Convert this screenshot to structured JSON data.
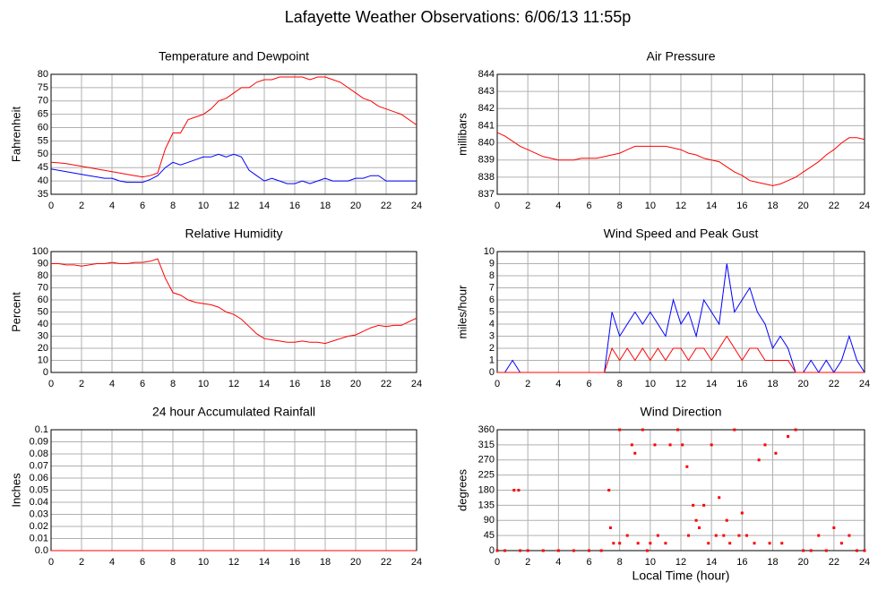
{
  "title": "Lafayette Weather Observations: 6/06/13 11:55p",
  "chart_data": [
    {
      "type": "line",
      "title": "Temperature and Dewpoint",
      "ylabel": "Fahrenheit",
      "x": [
        0,
        0.5,
        1,
        1.5,
        2,
        2.5,
        3,
        3.5,
        4,
        4.5,
        5,
        5.5,
        6,
        6.5,
        7,
        7.5,
        8,
        8.5,
        9,
        9.5,
        10,
        10.5,
        11,
        11.5,
        12,
        12.5,
        13,
        13.5,
        14,
        14.5,
        15,
        15.5,
        16,
        16.5,
        17,
        17.5,
        18,
        18.5,
        19,
        19.5,
        20,
        20.5,
        21,
        21.5,
        22,
        22.5,
        23,
        23.5,
        24
      ],
      "series": [
        {
          "color": "#ff0000",
          "values": [
            47,
            46.8,
            46.5,
            46,
            45.5,
            45,
            44.5,
            44,
            43.5,
            43,
            42.5,
            42,
            41.5,
            42,
            43,
            52,
            58,
            58,
            63,
            64,
            65,
            67,
            70,
            71,
            73,
            75,
            75,
            77,
            78,
            78,
            79,
            79,
            79,
            79,
            78,
            79,
            79,
            78,
            77,
            75,
            73,
            71,
            70,
            68,
            67,
            66,
            65,
            63,
            61
          ]
        },
        {
          "color": "#0000ff",
          "values": [
            44.5,
            44,
            43.5,
            43,
            42.5,
            42,
            41.5,
            41,
            41,
            40,
            39.5,
            39.5,
            39.5,
            40.5,
            42,
            45,
            47,
            46,
            47,
            48,
            49,
            49,
            50,
            49,
            50,
            49,
            44,
            42,
            40,
            41,
            40,
            39,
            39,
            40,
            39,
            40,
            41,
            40,
            40,
            40,
            41,
            41,
            42,
            42,
            40,
            40,
            40,
            40,
            40
          ]
        }
      ],
      "xlim": [
        0,
        24
      ],
      "xticks": [
        0,
        2,
        4,
        6,
        8,
        10,
        12,
        14,
        16,
        18,
        20,
        22,
        24
      ],
      "ylim": [
        35,
        80
      ],
      "yticks": [
        35,
        40,
        45,
        50,
        55,
        60,
        65,
        70,
        75,
        80
      ],
      "grid": true
    },
    {
      "type": "line",
      "title": "Air Pressure",
      "ylabel": "millibars",
      "x": [
        0,
        0.5,
        1,
        1.5,
        2,
        2.5,
        3,
        3.5,
        4,
        4.5,
        5,
        5.5,
        6,
        6.5,
        7,
        7.5,
        8,
        8.5,
        9,
        9.5,
        10,
        10.5,
        11,
        11.5,
        12,
        12.5,
        13,
        13.5,
        14,
        14.5,
        15,
        15.5,
        16,
        16.5,
        17,
        17.5,
        18,
        18.5,
        19,
        19.5,
        20,
        20.5,
        21,
        21.5,
        22,
        22.5,
        23,
        23.5,
        24
      ],
      "series": [
        {
          "color": "#ff0000",
          "values": [
            840.6,
            840.4,
            840.1,
            839.8,
            839.6,
            839.4,
            839.2,
            839.1,
            839,
            839,
            839,
            839.1,
            839.1,
            839.1,
            839.2,
            839.3,
            839.4,
            839.6,
            839.8,
            839.8,
            839.8,
            839.8,
            839.8,
            839.7,
            839.6,
            839.4,
            839.3,
            839.1,
            839,
            838.9,
            838.6,
            838.3,
            838.1,
            837.8,
            837.7,
            837.6,
            837.5,
            837.6,
            837.8,
            838,
            838.3,
            838.6,
            838.9,
            839.3,
            839.6,
            840,
            840.3,
            840.3,
            840.2
          ]
        }
      ],
      "xlim": [
        0,
        24
      ],
      "xticks": [
        0,
        2,
        4,
        6,
        8,
        10,
        12,
        14,
        16,
        18,
        20,
        22,
        24
      ],
      "ylim": [
        837,
        844
      ],
      "yticks": [
        837,
        838,
        839,
        840,
        841,
        842,
        843,
        844
      ],
      "grid": true
    },
    {
      "type": "line",
      "title": "Relative Humidity",
      "ylabel": "Percent",
      "x": [
        0,
        0.5,
        1,
        1.5,
        2,
        2.5,
        3,
        3.5,
        4,
        4.5,
        5,
        5.5,
        6,
        6.5,
        7,
        7.5,
        8,
        8.5,
        9,
        9.5,
        10,
        10.5,
        11,
        11.5,
        12,
        12.5,
        13,
        13.5,
        14,
        14.5,
        15,
        15.5,
        16,
        16.5,
        17,
        17.5,
        18,
        18.5,
        19,
        19.5,
        20,
        20.5,
        21,
        21.5,
        22,
        22.5,
        23,
        23.5,
        24
      ],
      "series": [
        {
          "color": "#ff0000",
          "values": [
            90,
            90,
            89,
            89,
            88,
            89,
            90,
            90,
            91,
            90,
            90,
            91,
            91,
            92,
            94,
            78,
            66,
            64,
            60,
            58,
            57,
            56,
            54,
            50,
            48,
            44,
            38,
            32,
            28,
            27,
            26,
            25,
            25,
            26,
            25,
            25,
            24,
            26,
            28,
            30,
            31,
            34,
            37,
            39,
            38,
            39,
            39,
            42,
            45
          ]
        }
      ],
      "xlim": [
        0,
        24
      ],
      "xticks": [
        0,
        2,
        4,
        6,
        8,
        10,
        12,
        14,
        16,
        18,
        20,
        22,
        24
      ],
      "ylim": [
        0,
        100
      ],
      "yticks": [
        0,
        10,
        20,
        30,
        40,
        50,
        60,
        70,
        80,
        90,
        100
      ],
      "grid": true
    },
    {
      "type": "line",
      "title": "Wind Speed and Peak Gust",
      "ylabel": "miles/hour",
      "x": [
        0,
        0.5,
        1,
        1.5,
        2,
        2.5,
        3,
        3.5,
        4,
        4.5,
        5,
        5.5,
        6,
        6.5,
        7,
        7.5,
        8,
        8.5,
        9,
        9.5,
        10,
        10.5,
        11,
        11.5,
        12,
        12.5,
        13,
        13.5,
        14,
        14.5,
        15,
        15.5,
        16,
        16.5,
        17,
        17.5,
        18,
        18.5,
        19,
        19.5,
        20,
        20.5,
        21,
        21.5,
        22,
        22.5,
        23,
        23.5,
        24
      ],
      "series": [
        {
          "color": "#0000ff",
          "values": [
            0,
            0,
            1,
            0,
            0,
            0,
            0,
            0,
            0,
            0,
            0,
            0,
            0,
            0,
            0,
            5,
            3,
            4,
            5,
            4,
            5,
            4,
            3,
            6,
            4,
            5,
            3,
            6,
            5,
            4,
            9,
            5,
            6,
            7,
            5,
            4,
            2,
            3,
            2,
            0,
            0,
            1,
            0,
            1,
            0,
            1,
            3,
            1,
            0
          ]
        },
        {
          "color": "#ff0000",
          "values": [
            0,
            0,
            0,
            0,
            0,
            0,
            0,
            0,
            0,
            0,
            0,
            0,
            0,
            0,
            0,
            2,
            1,
            2,
            1,
            2,
            1,
            2,
            1,
            2,
            2,
            1,
            2,
            2,
            1,
            2,
            3,
            2,
            1,
            2,
            2,
            1,
            1,
            1,
            1,
            0,
            0,
            0,
            0,
            0,
            0,
            0,
            0,
            0,
            0
          ]
        }
      ],
      "xlim": [
        0,
        24
      ],
      "xticks": [
        0,
        2,
        4,
        6,
        8,
        10,
        12,
        14,
        16,
        18,
        20,
        22,
        24
      ],
      "ylim": [
        0,
        10
      ],
      "yticks": [
        0,
        1,
        2,
        3,
        4,
        5,
        6,
        7,
        8,
        9,
        10
      ],
      "grid": true
    },
    {
      "type": "line",
      "title": "24 hour Accumulated Rainfall",
      "ylabel": "Inches",
      "x": [
        0,
        24
      ],
      "series": [
        {
          "color": "#ff0000",
          "values": [
            0,
            0
          ]
        }
      ],
      "xlim": [
        0,
        24
      ],
      "xticks": [
        0,
        2,
        4,
        6,
        8,
        10,
        12,
        14,
        16,
        18,
        20,
        22,
        24
      ],
      "ylim": [
        0,
        0.1
      ],
      "yticks": [
        {
          "value": 0,
          "label": "0.0"
        },
        0.01,
        0.02,
        0.03,
        0.04,
        0.05,
        0.06,
        0.07,
        0.08,
        0.09,
        0.1
      ],
      "grid": true
    },
    {
      "type": "scatter",
      "title": "Wind Direction",
      "ylabel": "degrees",
      "xlabel": "Local Time (hour)",
      "color": "#ff0000",
      "x": [
        0,
        0.5,
        1.5,
        2,
        3,
        4,
        5,
        6,
        6.8,
        1.1,
        1.4,
        7.3,
        7.4,
        7.6,
        8,
        8,
        8.5,
        8.8,
        9,
        9.2,
        9.5,
        9.8,
        10,
        10.3,
        10.5,
        11,
        11.3,
        11.8,
        12.1,
        12.4,
        12.5,
        12.8,
        13,
        13.2,
        13.5,
        13.8,
        14,
        14.3,
        14.5,
        14.8,
        15,
        15.2,
        15.5,
        15.8,
        16,
        16.3,
        16.8,
        17.1,
        17.5,
        17.8,
        18.2,
        18.6,
        19,
        19.5,
        20,
        20.5,
        21,
        21.5,
        22,
        22.5,
        23,
        23.5,
        24
      ],
      "values": [
        0,
        0,
        0,
        0,
        0,
        0,
        0,
        0,
        0,
        180,
        180,
        180,
        68,
        22,
        360,
        22,
        45,
        315,
        290,
        22,
        360,
        0,
        22,
        315,
        45,
        22,
        315,
        360,
        315,
        250,
        45,
        135,
        90,
        68,
        135,
        22,
        315,
        45,
        158,
        45,
        90,
        22,
        360,
        45,
        112,
        45,
        22,
        270,
        315,
        22,
        290,
        22,
        340,
        360,
        0,
        0,
        45,
        0,
        68,
        22,
        45,
        0,
        0
      ],
      "xlim": [
        0,
        24
      ],
      "xticks": [
        0,
        2,
        4,
        6,
        8,
        10,
        12,
        14,
        16,
        18,
        20,
        22,
        24
      ],
      "ylim": [
        0,
        360
      ],
      "yticks": [
        0,
        45,
        90,
        135,
        180,
        225,
        270,
        315,
        360
      ],
      "grid": true
    }
  ]
}
